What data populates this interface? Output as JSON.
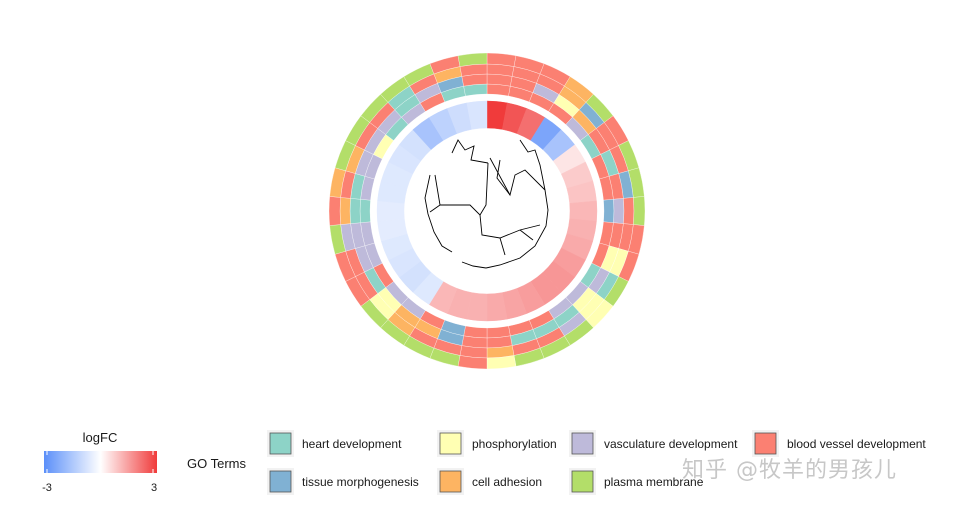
{
  "chart_data": {
    "type": "circular_heatmap",
    "colorbar": {
      "title": "logFC",
      "min_label": "-3",
      "max_label": "3",
      "range": [
        -3,
        3
      ],
      "colors": [
        "#5B8FF9",
        "#ffffff",
        "#F03B3B"
      ]
    },
    "go_legend": {
      "title": "GO Terms",
      "terms": [
        {
          "name": "heart development",
          "color": "#8DD3C7"
        },
        {
          "name": "phosphorylation",
          "color": "#FFFFB3"
        },
        {
          "name": "vasculature development",
          "color": "#BEBADA"
        },
        {
          "name": "blood vessel development",
          "color": "#FB8072"
        },
        {
          "name": "tissue morphogenesis",
          "color": "#80B1D3"
        },
        {
          "name": "cell adhesion",
          "color": "#FDB462"
        },
        {
          "name": "plasma membrane",
          "color": "#B3DE69"
        }
      ]
    },
    "genes_logfc": [
      3.0,
      2.6,
      2.2,
      -2.4,
      -1.6,
      0.4,
      0.8,
      0.9,
      1.1,
      1.2,
      1.3,
      1.5,
      1.6,
      1.6,
      1.5,
      1.4,
      1.3,
      1.2,
      1.2,
      1.1,
      -0.6,
      -0.8,
      -0.7,
      -0.6,
      -0.5,
      -0.5,
      -0.6,
      -0.6,
      -0.7,
      -0.8,
      -1.6,
      -1.2,
      -0.9,
      -0.7
    ],
    "membership_rings": [
      [
        3,
        3,
        3,
        3,
        2,
        0,
        3,
        3,
        4,
        3,
        3,
        0,
        2,
        2,
        3,
        3,
        3,
        3,
        4,
        3,
        2,
        2,
        3,
        2,
        2,
        0,
        2,
        2,
        1,
        0,
        2,
        3,
        0,
        0
      ],
      [
        3,
        3,
        2,
        1,
        5,
        3,
        0,
        3,
        2,
        3,
        1,
        2,
        1,
        0,
        0,
        0,
        3,
        3,
        4,
        5,
        5,
        1,
        0,
        2,
        2,
        0,
        0,
        2,
        2,
        2,
        0,
        2,
        4,
        3
      ],
      [
        3,
        3,
        3,
        5,
        4,
        3,
        3,
        4,
        3,
        3,
        1,
        0,
        1,
        2,
        3,
        3,
        5,
        3,
        3,
        3,
        5,
        1,
        3,
        3,
        2,
        5,
        3,
        5,
        3,
        3,
        0,
        3,
        5,
        3
      ],
      [
        3,
        3,
        3,
        5,
        6,
        3,
        6,
        6,
        6,
        3,
        3,
        6,
        1,
        6,
        6,
        6,
        1,
        3,
        6,
        6,
        6,
        6,
        3,
        3,
        6,
        3,
        5,
        6,
        6,
        6,
        6,
        6,
        3,
        6
      ]
    ]
  },
  "watermark": "知乎 @牧羊的男孩儿"
}
